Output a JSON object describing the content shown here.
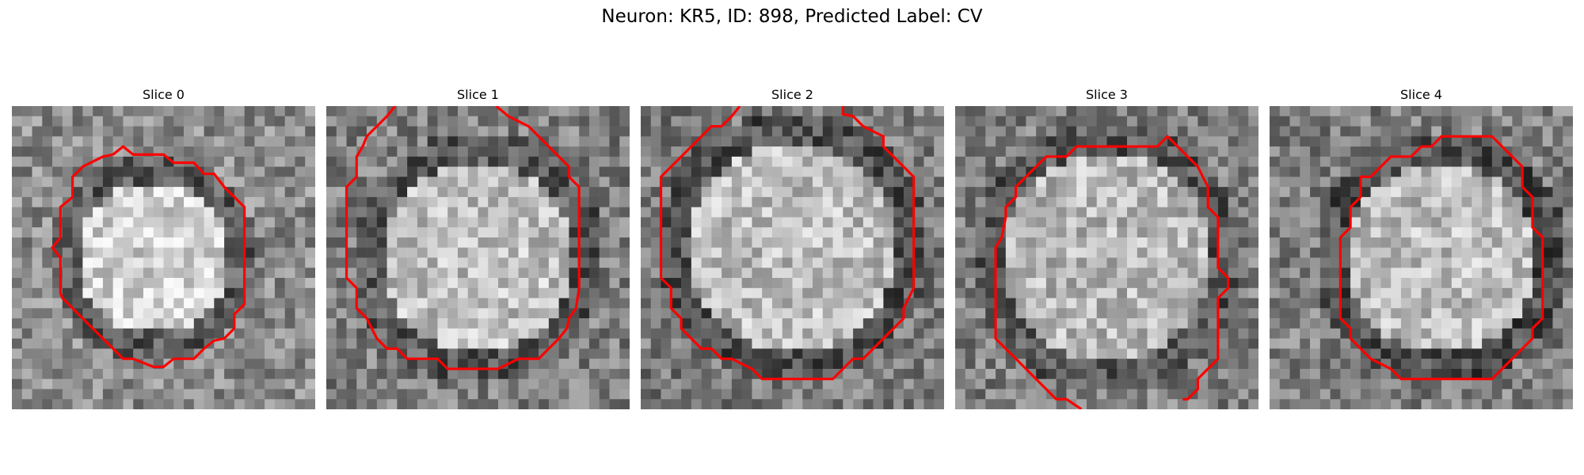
{
  "figure": {
    "title": "Neuron: KR5, ID: 898, Predicted Label: CV"
  },
  "panels": [
    {
      "title": "Slice 0"
    },
    {
      "title": "Slice 1"
    },
    {
      "title": "Slice 2"
    },
    {
      "title": "Slice 3"
    },
    {
      "title": "Slice 4"
    }
  ],
  "contour_color": "#ff0000"
}
